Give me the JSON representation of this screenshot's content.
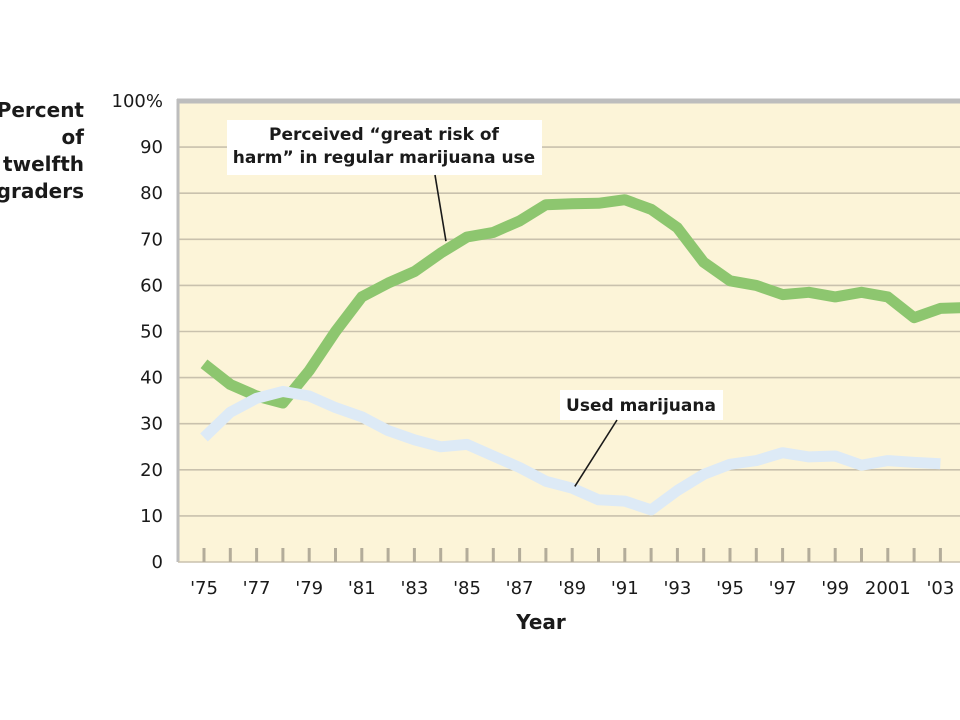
{
  "chart_data": {
    "type": "line",
    "title": "",
    "ylabel_lines": [
      "Percent",
      "of",
      "twelfth",
      "graders"
    ],
    "xlabel": "Year",
    "ylim": [
      0,
      100
    ],
    "yticks": [
      0,
      10,
      20,
      30,
      40,
      50,
      60,
      70,
      80,
      90,
      100
    ],
    "ytick_labels": [
      "0",
      "10",
      "20",
      "30",
      "40",
      "50",
      "60",
      "70",
      "80",
      "90",
      "100%"
    ],
    "xlim": [
      1975,
      2004.2
    ],
    "xticks": [
      1975,
      1977,
      1979,
      1981,
      1983,
      1985,
      1987,
      1989,
      1991,
      1993,
      1995,
      1997,
      1999,
      2001,
      2003
    ],
    "xtick_labels": [
      "'75",
      "'77",
      "'79",
      "'81",
      "'83",
      "'85",
      "'87",
      "'89",
      "'91",
      "'93",
      "'95",
      "'97",
      "'99",
      "2001",
      "'03"
    ],
    "grid": true,
    "background_color": "#fcf4d8",
    "frame_color": "#bdbdbd",
    "series": [
      {
        "key": "risk",
        "color": "#8dc66f",
        "x": [
          1975,
          1976,
          1977,
          1978,
          1979,
          1980,
          1981,
          1982,
          1983,
          1984,
          1985,
          1986,
          1987,
          1988,
          1989,
          1990,
          1991,
          1992,
          1993,
          1994,
          1995,
          1996,
          1997,
          1998,
          1999,
          2000,
          2001,
          2002,
          2003,
          2004
        ],
        "y": [
          43,
          38.5,
          36,
          34.5,
          41.5,
          50,
          57.5,
          60.5,
          63,
          67,
          70.5,
          71.5,
          74,
          77.5,
          77.7,
          77.8,
          78.6,
          76.5,
          72.5,
          65,
          61,
          60,
          58,
          58.5,
          57.5,
          58.5,
          57.5,
          53,
          55,
          55.2
        ]
      },
      {
        "key": "used",
        "color": "#ddeaf6",
        "x": [
          1975,
          1976,
          1977,
          1978,
          1979,
          1980,
          1981,
          1982,
          1983,
          1984,
          1985,
          1986,
          1987,
          1988,
          1989,
          1990,
          1991,
          1992,
          1993,
          1994,
          1995,
          1996,
          1997,
          1998,
          1999,
          2000,
          2001,
          2002,
          2003
        ],
        "y": [
          27,
          32.5,
          35.5,
          37,
          36,
          33.5,
          31.5,
          28.5,
          26.5,
          25,
          25.5,
          23,
          20.5,
          17.5,
          16,
          13.5,
          13.2,
          11.3,
          15.5,
          19,
          21.2,
          22,
          23.7,
          22.8,
          23,
          21,
          22,
          21.6,
          21.3
        ]
      }
    ],
    "annotations": [
      {
        "key": "risk_label",
        "lines": [
          "Perceived “great risk of",
          "harm” in regular marijuana use"
        ]
      },
      {
        "key": "used_label",
        "lines": [
          "Used marijuana"
        ]
      }
    ]
  }
}
